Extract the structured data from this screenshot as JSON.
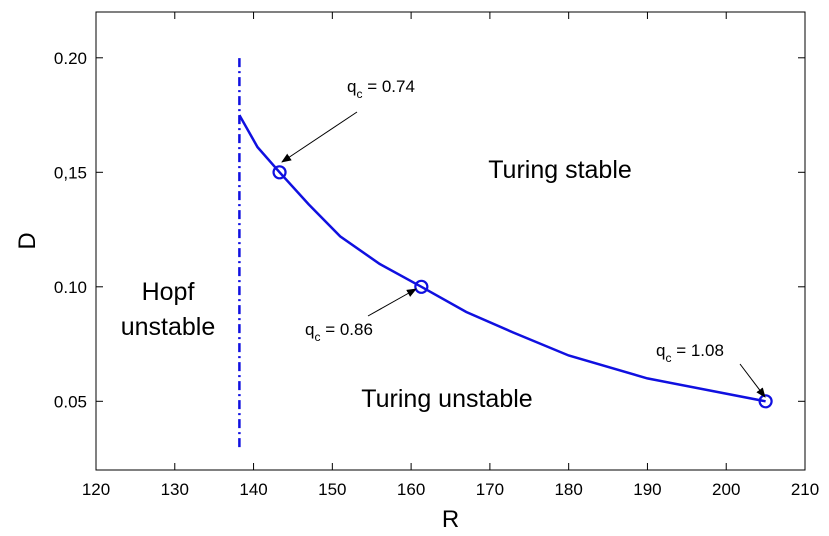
{
  "chart_data": {
    "type": "line",
    "xlabel": "R",
    "ylabel": "D",
    "xlim": [
      120,
      210
    ],
    "ylim": [
      0.02,
      0.22
    ],
    "x_ticks": [
      120,
      130,
      140,
      150,
      160,
      170,
      180,
      190,
      200,
      210
    ],
    "x_tick_labels": [
      "120",
      "130",
      "140",
      "150",
      "160",
      "170",
      "180",
      "190",
      "200",
      "210"
    ],
    "y_ticks": [
      0.05,
      0.1,
      0.15,
      0.2
    ],
    "y_tick_labels": [
      "0.05",
      "0.10",
      "0,15",
      "0.20"
    ],
    "grid": false,
    "colors": {
      "curve": "#1010e0",
      "axis": "#000000",
      "annotation": "#000000"
    },
    "series": [
      {
        "style": "solid",
        "x": [
          138.2,
          140.5,
          143.3,
          147.0,
          151.0,
          156.0,
          161.3,
          167.0,
          173.0,
          180.0,
          190.0,
          205.0
        ],
        "y": [
          0.175,
          0.161,
          0.15,
          0.136,
          0.122,
          0.11,
          0.1,
          0.089,
          0.08,
          0.07,
          0.06,
          0.05
        ]
      },
      {
        "style": "dashdot",
        "x": [
          138.2,
          138.2
        ],
        "y": [
          0.03,
          0.2
        ]
      }
    ],
    "markers": [
      {
        "x": 143.3,
        "y": 0.15
      },
      {
        "x": 161.3,
        "y": 0.1
      },
      {
        "x": 205.0,
        "y": 0.05
      }
    ],
    "annotations": [
      {
        "prefix": "q",
        "sub": "c",
        "text": " = 0.74",
        "anchor_x": 143.3,
        "anchor_y": 0.15
      },
      {
        "prefix": "q",
        "sub": "c",
        "text": " = 0.86",
        "anchor_x": 161.3,
        "anchor_y": 0.1
      },
      {
        "prefix": "q",
        "sub": "c",
        "text": " = 1.08",
        "anchor_x": 205.0,
        "anchor_y": 0.05
      }
    ],
    "regions": [
      {
        "lines": [
          "Turing stable"
        ]
      },
      {
        "lines": [
          "Hopf",
          "unstable"
        ]
      },
      {
        "lines": [
          "Turing unstable"
        ]
      }
    ]
  }
}
